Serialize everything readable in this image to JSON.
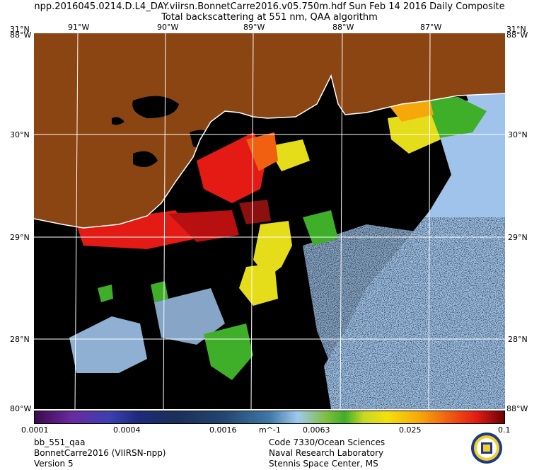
{
  "header": {
    "line1": "npp.2016045.0214.D.L4_DAY.viirsn.BonnetCarre2016.v05.750m.hdf      Sun Feb 14 2016 Daily Composite",
    "line2": "Total backscattering at 551 nm, QAA algorithm"
  },
  "axes": {
    "lon_top": [
      "91°W",
      "90°W",
      "89°W",
      "88°W",
      "87°W"
    ],
    "lat_left": [
      "30°N",
      "29°N",
      "28°N"
    ],
    "lat_right": [
      "30°N",
      "29°N",
      "28°N"
    ],
    "corner_tl": "31°N\n88°W",
    "corner_tr": "31°N\n88°W",
    "corner_bl": "80°W",
    "corner_br": "88°W"
  },
  "colorbar": {
    "unit": "m^-1",
    "ticks": [
      "0.0001",
      "0.0004",
      "0.0016",
      "0.0063",
      "0.025",
      "0.1"
    ],
    "colors": {
      "land": "#8b4513",
      "no_data": "#000000",
      "low": "#9fc9ee",
      "mid": "#3fae28",
      "high": "#e41b14"
    }
  },
  "footer": {
    "left": [
      "bb_551_qaa",
      "BonnetCarre2016 (VIIRSN-npp)",
      "Version 5"
    ],
    "right": [
      "Code 7330/Ocean Sciences",
      "Naval Research Laboratory",
      "Stennis Space Center, MS"
    ]
  },
  "logo": {
    "name": "Naval Research Laboratory seal"
  }
}
